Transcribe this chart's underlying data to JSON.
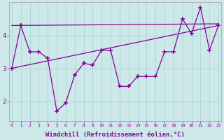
{
  "xlabel": "Windchill (Refroidissement éolien,°C)",
  "x_values": [
    0,
    1,
    2,
    3,
    4,
    5,
    6,
    7,
    8,
    9,
    10,
    11,
    12,
    13,
    14,
    15,
    16,
    17,
    18,
    19,
    20,
    21,
    22,
    23
  ],
  "y_main": [
    3.0,
    4.3,
    3.5,
    3.5,
    3.3,
    1.7,
    1.95,
    2.8,
    3.15,
    3.1,
    3.55,
    3.55,
    2.45,
    2.45,
    2.75,
    2.75,
    2.75,
    3.5,
    3.5,
    4.5,
    4.05,
    4.85,
    3.55,
    4.3
  ],
  "trend1_x": [
    0,
    23
  ],
  "trend1_y": [
    4.3,
    4.35
  ],
  "trend2_x": [
    0,
    23
  ],
  "trend2_y": [
    3.0,
    4.3
  ],
  "bg_color": "#cce8e8",
  "line_color": "#880099",
  "grid_color": "#aad4d4",
  "yticks": [
    2,
    3,
    4
  ],
  "ylim": [
    1.4,
    5.0
  ],
  "xlim": [
    -0.3,
    23.3
  ],
  "label_color": "#880099",
  "spine_color": "#aaaaaa",
  "marker": "+",
  "markersize": 4,
  "linewidth": 0.9,
  "xlabel_fontsize": 6.5,
  "xtick_fontsize": 4.5,
  "ytick_fontsize": 6.5
}
